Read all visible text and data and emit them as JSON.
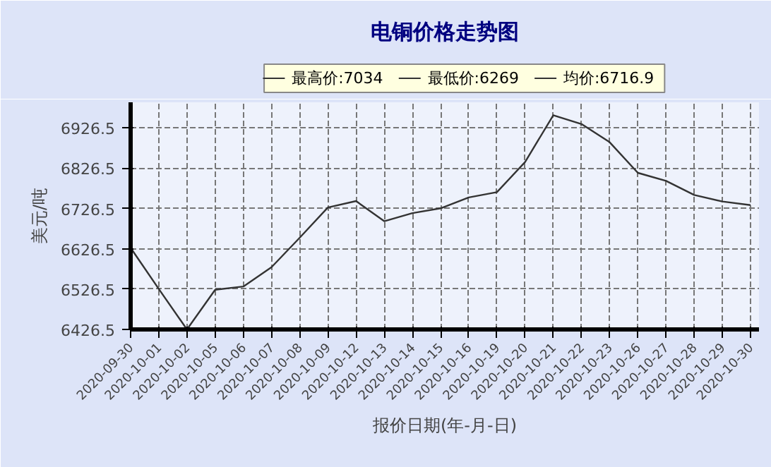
{
  "chart_data": {
    "type": "line",
    "title": "电铜价格走势图",
    "xlabel": "报价日期(年-月-日)",
    "ylabel": "美元/吨",
    "categories": [
      "2020-09-30",
      "2020-10-01",
      "2020-10-02",
      "2020-10-05",
      "2020-10-06",
      "2020-10-07",
      "2020-10-08",
      "2020-10-09",
      "2020-10-12",
      "2020-10-13",
      "2020-10-14",
      "2020-10-15",
      "2020-10-16",
      "2020-10-19",
      "2020-10-20",
      "2020-10-21",
      "2020-10-22",
      "2020-10-23",
      "2020-10-26",
      "2020-10-27",
      "2020-10-28",
      "2020-10-29",
      "2020-10-30"
    ],
    "series": [
      {
        "color": "#333333",
        "values": [
          6629,
          6527,
          6426.5,
          6525,
          6533,
          6581,
          6654,
          6729,
          6745,
          6695,
          6715,
          6727,
          6754,
          6767,
          6842,
          6958,
          6936,
          6891,
          6815,
          6795,
          6760,
          6744,
          6735
        ]
      }
    ],
    "ylim": [
      6426.5,
      6990
    ],
    "yticks": [
      6426.5,
      6526.5,
      6626.5,
      6726.5,
      6826.5,
      6926.5
    ],
    "grid": true,
    "line_style": "solid",
    "marker": "none",
    "annotations": [
      "最高价:7034",
      "最低价:6269",
      "均价:6716.9"
    ]
  }
}
